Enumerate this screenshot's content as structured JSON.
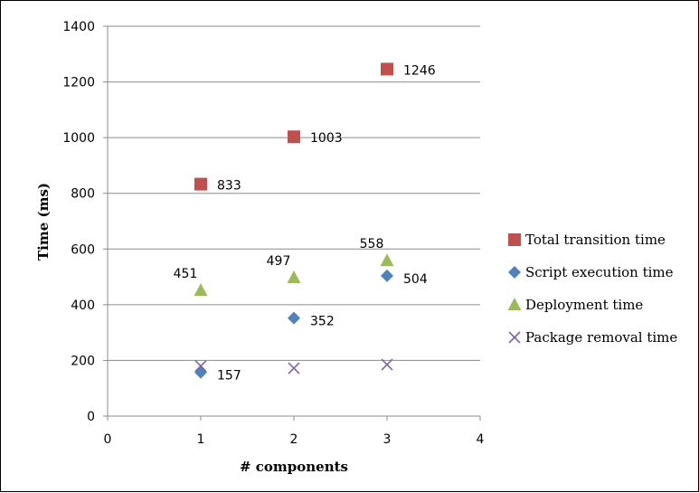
{
  "chart_data": {
    "type": "scatter",
    "title": "",
    "xlabel": "# components",
    "ylabel": "Time (ms)",
    "xlim": [
      0,
      4
    ],
    "ylim": [
      0,
      1400
    ],
    "xticks": [
      0,
      1,
      2,
      3,
      4
    ],
    "yticks": [
      0,
      200,
      400,
      600,
      800,
      1000,
      1200,
      1400
    ],
    "grid": "horizontal",
    "legend_position": "right",
    "series": [
      {
        "name": "Total transition time",
        "marker": "square",
        "color": "#c0504d",
        "x": [
          1,
          2,
          3
        ],
        "y": [
          833,
          1003,
          1246
        ],
        "labels": [
          "833",
          "1003",
          "1246"
        ]
      },
      {
        "name": "Script execution time",
        "marker": "diamond",
        "color": "#4f81bd",
        "x": [
          1,
          2,
          3
        ],
        "y": [
          157,
          352,
          504
        ],
        "labels": [
          "157",
          "352",
          "504"
        ]
      },
      {
        "name": "Deployment time",
        "marker": "triangle",
        "color": "#9bbb59",
        "x": [
          1,
          2,
          3
        ],
        "y": [
          451,
          497,
          558
        ],
        "labels": [
          "451",
          "497",
          "558"
        ]
      },
      {
        "name": "Package removal time",
        "marker": "x",
        "color": "#8064a2",
        "x": [
          1,
          2,
          3
        ],
        "y": [
          180,
          172,
          185
        ],
        "labels": []
      }
    ]
  }
}
